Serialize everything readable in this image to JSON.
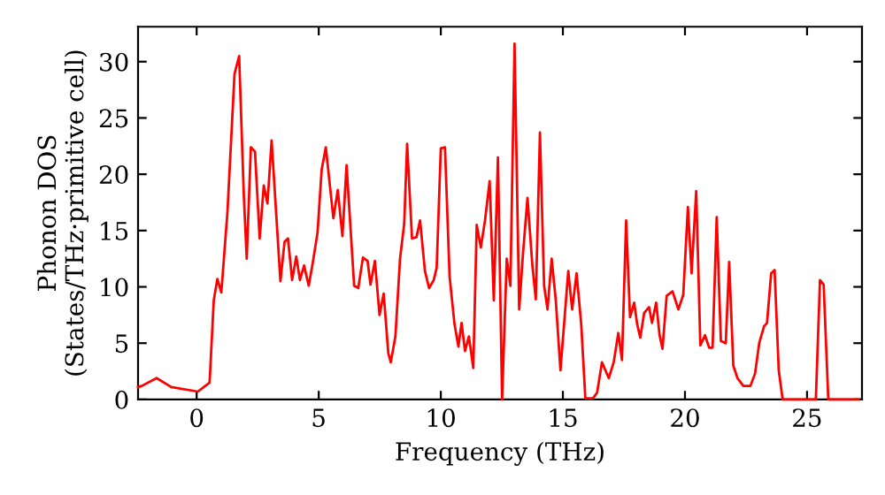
{
  "chart_data": {
    "type": "line",
    "xlabel": "Frequency (THz)",
    "ylabel": "Phonon DOS\n(States/THz·primitive cell)",
    "xlim": [
      -2.4,
      27.25
    ],
    "ylim": [
      0,
      33.1
    ],
    "xticks": [
      0,
      5,
      10,
      15,
      20,
      25
    ],
    "yticks": [
      0,
      5,
      10,
      15,
      20,
      25,
      30
    ],
    "grid": false,
    "marker": "none",
    "line_style": "solid",
    "series": [
      {
        "color": "#ff0000",
        "x": [
          -2.4,
          -2.25,
          -1.64,
          -1.04,
          0.05,
          0.53,
          0.7,
          0.85,
          1.01,
          1.26,
          1.55,
          1.74,
          1.93,
          2.05,
          2.22,
          2.39,
          2.58,
          2.75,
          2.9,
          3.07,
          3.43,
          3.6,
          3.74,
          3.91,
          4.08,
          4.23,
          4.4,
          4.59,
          4.76,
          4.95,
          5.12,
          5.29,
          5.6,
          5.78,
          5.97,
          6.14,
          6.45,
          6.62,
          6.81,
          7.0,
          7.12,
          7.3,
          7.49,
          7.66,
          7.85,
          7.95,
          8.14,
          8.33,
          8.5,
          8.62,
          8.82,
          9.0,
          9.15,
          9.35,
          9.52,
          9.71,
          9.83,
          10.0,
          10.17,
          10.36,
          10.56,
          10.72,
          10.85,
          10.99,
          11.15,
          11.33,
          11.47,
          11.64,
          11.81,
          12.0,
          12.17,
          12.34,
          12.51,
          12.7,
          12.85,
          13.02,
          13.21,
          13.36,
          13.55,
          13.75,
          13.89,
          14.06,
          14.23,
          14.37,
          14.54,
          14.71,
          14.9,
          15.22,
          15.38,
          15.56,
          15.75,
          15.92,
          16.23,
          16.4,
          16.6,
          16.88,
          17.08,
          17.27,
          17.42,
          17.59,
          17.75,
          17.92,
          18.04,
          18.17,
          18.33,
          18.53,
          18.65,
          18.82,
          18.96,
          19.08,
          19.25,
          19.49,
          19.73,
          19.93,
          20.12,
          20.27,
          20.46,
          20.63,
          20.82,
          20.99,
          21.13,
          21.3,
          21.47,
          21.67,
          21.81,
          21.98,
          22.15,
          22.39,
          22.68,
          22.87,
          23.04,
          23.24,
          23.36,
          23.53,
          23.67,
          23.84,
          24.0,
          25.36,
          25.53,
          25.68,
          25.87,
          27.1
        ],
        "values": [
          1.1,
          1.2,
          1.9,
          1.1,
          0.7,
          1.5,
          8.8,
          10.7,
          9.5,
          16.6,
          28.9,
          30.5,
          18.2,
          12.5,
          22.4,
          22.0,
          14.3,
          19.0,
          17.4,
          23.0,
          10.5,
          14.0,
          14.3,
          10.6,
          12.7,
          10.6,
          11.9,
          10.1,
          12.2,
          14.8,
          20.4,
          22.4,
          16.1,
          18.6,
          14.5,
          20.8,
          10.1,
          9.9,
          12.6,
          12.3,
          10.2,
          12.3,
          7.5,
          9.4,
          4.1,
          3.3,
          5.6,
          12.5,
          15.6,
          22.7,
          14.3,
          14.4,
          15.9,
          11.4,
          9.9,
          10.6,
          11.7,
          22.3,
          22.4,
          10.9,
          6.7,
          4.7,
          6.8,
          4.3,
          5.6,
          2.8,
          15.5,
          13.5,
          15.9,
          19.4,
          8.8,
          21.5,
          0.0,
          12.5,
          10.1,
          31.6,
          8.0,
          12.8,
          17.9,
          11.9,
          8.9,
          23.7,
          10.1,
          8.0,
          12.5,
          8.8,
          2.6,
          11.4,
          8.0,
          11.2,
          6.7,
          0.1,
          0.1,
          0.6,
          3.3,
          1.9,
          3.3,
          5.9,
          3.5,
          15.9,
          7.3,
          8.6,
          6.7,
          5.5,
          7.7,
          8.2,
          6.8,
          8.6,
          5.7,
          4.5,
          9.2,
          9.6,
          8.0,
          9.3,
          17.1,
          11.2,
          18.5,
          4.8,
          5.7,
          4.6,
          4.6,
          16.2,
          5.2,
          5.0,
          12.2,
          3.0,
          1.9,
          1.2,
          1.2,
          2.3,
          5.0,
          6.5,
          6.8,
          11.2,
          11.5,
          2.6,
          0.0,
          0.0,
          10.6,
          10.2,
          0.0,
          0.0
        ]
      }
    ]
  }
}
